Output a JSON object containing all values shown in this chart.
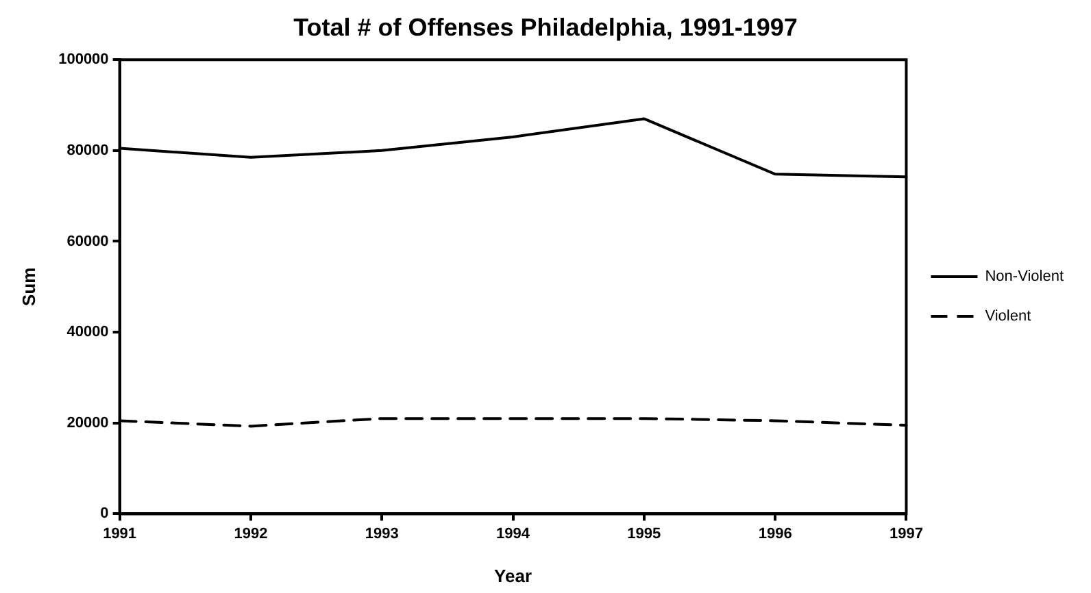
{
  "chart_data": {
    "type": "line",
    "title": "Total # of Offenses Philadelphia, 1991-1997",
    "xlabel": "Year",
    "ylabel": "Sum",
    "x": [
      1991,
      1992,
      1993,
      1994,
      1995,
      1996,
      1997
    ],
    "series": [
      {
        "name": "Non-Violent",
        "color": "#000000",
        "line_style": "solid",
        "values": [
          80500,
          78500,
          80000,
          83000,
          87000,
          74800,
          74200
        ]
      },
      {
        "name": "Violent",
        "color": "#000000",
        "line_style": "dashed",
        "values": [
          20500,
          19300,
          21000,
          21000,
          21000,
          20500,
          19500
        ]
      }
    ],
    "xlim": [
      1991,
      1997
    ],
    "xticks": [
      1991,
      1992,
      1993,
      1994,
      1995,
      1996,
      1997
    ],
    "ylim": [
      0,
      100000
    ],
    "yticks": [
      0,
      20000,
      40000,
      60000,
      80000,
      100000
    ],
    "grid": false,
    "legend": "right",
    "marker": "none"
  }
}
